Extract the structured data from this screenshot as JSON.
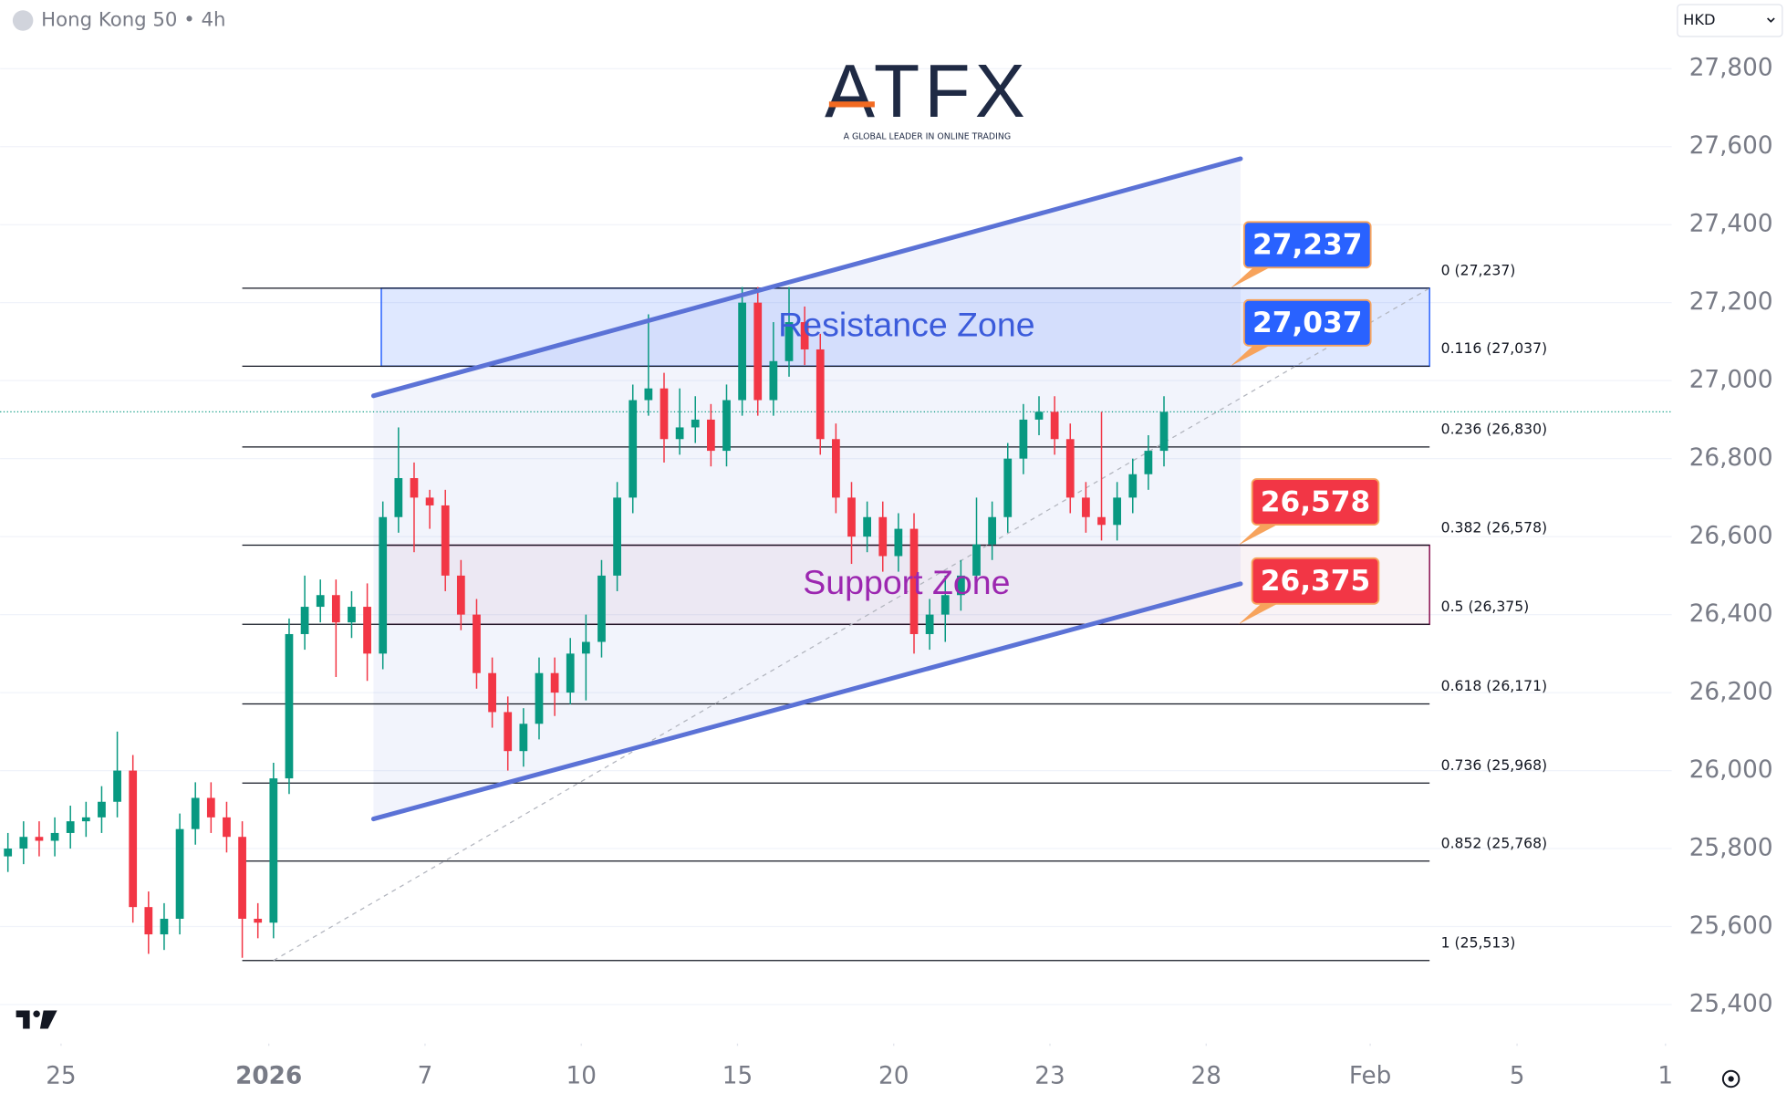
{
  "header": {
    "symbol": "Hong Kong 50 • 4h",
    "currency": "HKD"
  },
  "logo": {
    "name": "ATFX",
    "tagline": "A GLOBAL LEADER IN ONLINE TRADING"
  },
  "chart_data": {
    "type": "candlestick",
    "xlim": [
      0,
      107
    ],
    "ylim": [
      25300,
      27900
    ],
    "xticks": [
      {
        "value": 3.9,
        "label": "25"
      },
      {
        "value": 17.2,
        "label": "2026"
      },
      {
        "value": 27.2,
        "label": "7"
      },
      {
        "value": 37.2,
        "label": "10"
      },
      {
        "value": 47.2,
        "label": "15"
      },
      {
        "value": 57.2,
        "label": "20"
      },
      {
        "value": 67.2,
        "label": "23"
      },
      {
        "value": 77.2,
        "label": "28"
      },
      {
        "value": 87.7,
        "label": "Feb"
      },
      {
        "value": 97.1,
        "label": "5"
      },
      {
        "value": 106.6,
        "label": "1"
      }
    ],
    "yticks": [
      {
        "value": 25400,
        "label": "25,400"
      },
      {
        "value": 25600,
        "label": "25,600"
      },
      {
        "value": 25800,
        "label": "25,800"
      },
      {
        "value": 26000,
        "label": "26,000"
      },
      {
        "value": 26200,
        "label": "26,200"
      },
      {
        "value": 26400,
        "label": "26,400"
      },
      {
        "value": 26600,
        "label": "26,600"
      },
      {
        "value": 26800,
        "label": "26,800"
      },
      {
        "value": 27000,
        "label": "27,000"
      },
      {
        "value": 27200,
        "label": "27,200"
      },
      {
        "value": 27400,
        "label": "27,400"
      },
      {
        "value": 27600,
        "label": "27,600"
      },
      {
        "value": 27800,
        "label": "27,800"
      }
    ],
    "grid": true,
    "up_color": "#089981",
    "down_color": "#f23645",
    "open": [
      25780,
      25800,
      25830,
      25820,
      25840,
      25870,
      25880,
      25920,
      26000,
      25650,
      25580,
      25620,
      25850,
      25930,
      25880,
      25830,
      25620,
      25610,
      25980,
      26350,
      26420,
      26450,
      26380,
      26420,
      26300,
      26650,
      26750,
      26700,
      26680,
      26500,
      26400,
      26250,
      26150,
      26050,
      26120,
      26250,
      26200,
      26300,
      26330,
      26500,
      26700,
      26950,
      26980,
      26850,
      26880,
      26900,
      26820,
      26950,
      27200,
      26950,
      27050,
      27150,
      27080,
      26850,
      26700,
      26600,
      26650,
      26550,
      26620,
      26350,
      26400,
      26450,
      26500,
      26580,
      26650,
      26800,
      26900,
      26920,
      26850,
      26700,
      26650,
      26630,
      26700,
      26760,
      26820
    ],
    "high": [
      25840,
      25870,
      25870,
      25880,
      25910,
      25920,
      25960,
      26100,
      26040,
      25690,
      25660,
      25890,
      25970,
      25970,
      25920,
      25870,
      25660,
      26020,
      26390,
      26500,
      26490,
      26490,
      26460,
      26480,
      26690,
      26880,
      26790,
      26720,
      26720,
      26540,
      26440,
      26290,
      26190,
      26160,
      26290,
      26290,
      26340,
      26400,
      26540,
      26740,
      26990,
      27170,
      27020,
      26980,
      26960,
      26940,
      26990,
      27240,
      27240,
      27150,
      27240,
      27190,
      27120,
      26890,
      26740,
      26690,
      26690,
      26660,
      26660,
      26440,
      26500,
      26540,
      26700,
      26690,
      26840,
      26940,
      26960,
      26960,
      26890,
      26740,
      26920,
      26740,
      26800,
      26860,
      26960
    ],
    "low": [
      25740,
      25760,
      25780,
      25780,
      25800,
      25830,
      25840,
      25880,
      25610,
      25530,
      25540,
      25580,
      25810,
      25840,
      25790,
      25520,
      25570,
      25570,
      25940,
      26310,
      26380,
      26240,
      26340,
      26230,
      26260,
      26610,
      26560,
      26620,
      26460,
      26360,
      26210,
      26110,
      26000,
      26010,
      26080,
      26140,
      26170,
      26180,
      26290,
      26460,
      26660,
      26910,
      26790,
      26810,
      26840,
      26780,
      26780,
      26910,
      26910,
      26910,
      27010,
      27040,
      26810,
      26660,
      26530,
      26560,
      26510,
      26510,
      26300,
      26310,
      26330,
      26410,
      26460,
      26540,
      26610,
      26760,
      26860,
      26810,
      26660,
      26610,
      26590,
      26590,
      26660,
      26720,
      26780
    ],
    "close": [
      25800,
      25830,
      25820,
      25840,
      25870,
      25880,
      25920,
      26000,
      25650,
      25580,
      25620,
      25850,
      25930,
      25880,
      25830,
      25620,
      25610,
      25980,
      26350,
      26420,
      26450,
      26380,
      26420,
      26300,
      26650,
      26750,
      26700,
      26680,
      26500,
      26400,
      26250,
      26150,
      26050,
      26120,
      26250,
      26200,
      26300,
      26330,
      26500,
      26700,
      26950,
      26980,
      26850,
      26880,
      26900,
      26820,
      26950,
      27200,
      26950,
      27050,
      27150,
      27080,
      26850,
      26700,
      26600,
      26650,
      26550,
      26620,
      26350,
      26400,
      26450,
      26500,
      26580,
      26650,
      26800,
      26900,
      26920,
      26850,
      26700,
      26650,
      26630,
      26700,
      26760,
      26820,
      26920
    ],
    "channel": {
      "color": "#5b72d6",
      "upper": [
        [
          23.9,
          26961
        ],
        [
          79.4,
          27569
        ]
      ],
      "lower": [
        [
          23.9,
          25876
        ],
        [
          79.4,
          26479
        ]
      ]
    },
    "fib_anchor": [
      [
        17.5,
        25513
      ],
      [
        91.5,
        27237
      ]
    ],
    "fib_range": [
      15.5,
      91.5
    ],
    "fib_levels": [
      {
        "value": 27237,
        "label": "0 (27,237)"
      },
      {
        "value": 27037,
        "label": "0.116 (27,037)"
      },
      {
        "value": 26830,
        "label": "0.236 (26,830)"
      },
      {
        "value": 26578,
        "label": "0.382 (26,578)"
      },
      {
        "value": 26375,
        "label": "0.5 (26,375)"
      },
      {
        "value": 26171,
        "label": "0.618 (26,171)"
      },
      {
        "value": 25968,
        "label": "0.736 (25,968)"
      },
      {
        "value": 25768,
        "label": "0.852 (25,768)"
      },
      {
        "value": 25513,
        "label": "1 (25,513)"
      }
    ],
    "zones": [
      {
        "name": "Resistance Zone",
        "low": 27037,
        "high": 27237,
        "color": "#2962ff",
        "text_color": "#3b5bdb"
      },
      {
        "name": "Support Zone",
        "low": 26375,
        "high": 26578,
        "color": "#880e4f",
        "text_color": "#9c27b0"
      }
    ],
    "zone_range": [
      24.4,
      91.5
    ],
    "badges": [
      {
        "value": 27237,
        "label": "27,237",
        "color": "#2962ff"
      },
      {
        "value": 27037,
        "label": "27,037",
        "color": "#2962ff"
      },
      {
        "value": 26578,
        "label": "26,578",
        "color": "#f23645"
      },
      {
        "value": 26375,
        "label": "26,375",
        "color": "#f23645"
      }
    ]
  }
}
